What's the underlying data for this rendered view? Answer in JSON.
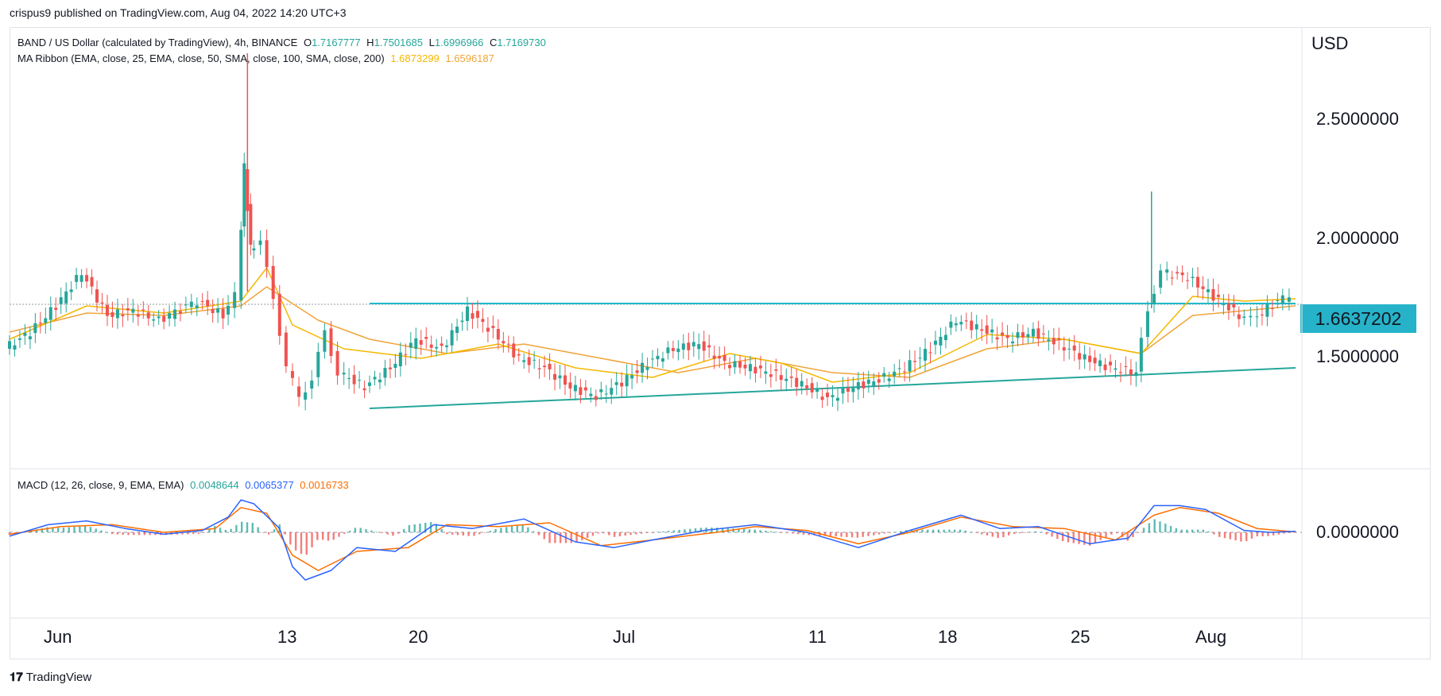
{
  "header": {
    "published": "crispus9 published on TradingView.com, Aug 04, 2022 14:20 UTC+3"
  },
  "legend": {
    "symbol": "BAND / US Dollar (calculated by TradingView), 4h, BINANCE",
    "o_label": "O",
    "o_value": "1.7167777",
    "h_label": "H",
    "h_value": "1.7501685",
    "l_label": "L",
    "l_value": "1.6996966",
    "c_label": "C",
    "c_value": "1.7169730",
    "ma_name": "MA Ribbon (EMA, close, 25, EMA, close, 50, SMA, close, 100, SMA, close, 200)",
    "ma_v1": "1.6873299",
    "ma_v2": "1.6596187",
    "macd_name": "MACD (12, 26, close, 9, EMA, EMA)",
    "macd_v1": "0.0048644",
    "macd_v2": "0.0065377",
    "macd_v3": "0.0016733"
  },
  "colors": {
    "up": "#26a69a",
    "down": "#ef5350",
    "ma1": "#f5b800",
    "ma2": "#f0a43a",
    "trend": "#26a69a",
    "resist": "#22b8c9",
    "macd": "#2962ff",
    "signal": "#ff6d00"
  },
  "footer": {
    "brand": "TradingView"
  },
  "chart_data": {
    "type": "line",
    "title": "BAND / US Dollar, 4h, BINANCE",
    "currency": "USD",
    "y_ticks": [
      "2.5000000",
      "2.0000000",
      "1.5000000"
    ],
    "last_price": "1.6637202",
    "x_ticks": [
      "Jun",
      "13",
      "20",
      "Jul",
      "11",
      "18",
      "25",
      "Aug"
    ],
    "price_path": [
      [
        0,
        1.48
      ],
      [
        2,
        1.55
      ],
      [
        4,
        1.66
      ],
      [
        6,
        1.8
      ],
      [
        8,
        1.62
      ],
      [
        10,
        1.64
      ],
      [
        12,
        1.6
      ],
      [
        15,
        1.68
      ],
      [
        17,
        1.62
      ],
      [
        18,
        1.7
      ],
      [
        18.5,
        2.25
      ],
      [
        19,
        1.9
      ],
      [
        20,
        1.92
      ],
      [
        21,
        1.7
      ],
      [
        22,
        1.4
      ],
      [
        23,
        1.28
      ],
      [
        24,
        1.35
      ],
      [
        25,
        1.55
      ],
      [
        26,
        1.38
      ],
      [
        28,
        1.32
      ],
      [
        30,
        1.4
      ],
      [
        32,
        1.52
      ],
      [
        34,
        1.48
      ],
      [
        36,
        1.64
      ],
      [
        38,
        1.55
      ],
      [
        40,
        1.44
      ],
      [
        42,
        1.4
      ],
      [
        44,
        1.32
      ],
      [
        46,
        1.28
      ],
      [
        48,
        1.34
      ],
      [
        50,
        1.42
      ],
      [
        52,
        1.48
      ],
      [
        54,
        1.5
      ],
      [
        56,
        1.42
      ],
      [
        58,
        1.4
      ],
      [
        60,
        1.37
      ],
      [
        62,
        1.33
      ],
      [
        64,
        1.27
      ],
      [
        66,
        1.32
      ],
      [
        68,
        1.35
      ],
      [
        70,
        1.4
      ],
      [
        72,
        1.48
      ],
      [
        74,
        1.6
      ],
      [
        76,
        1.56
      ],
      [
        78,
        1.52
      ],
      [
        80,
        1.55
      ],
      [
        82,
        1.5
      ],
      [
        84,
        1.44
      ],
      [
        86,
        1.4
      ],
      [
        88,
        1.38
      ],
      [
        89,
        1.65
      ],
      [
        90,
        1.8
      ],
      [
        92,
        1.78
      ],
      [
        94,
        1.7
      ],
      [
        96,
        1.62
      ],
      [
        97,
        1.6
      ],
      [
        99,
        1.68
      ],
      [
        100,
        1.71
      ]
    ],
    "ma_25": [
      [
        0,
        1.52
      ],
      [
        6,
        1.66
      ],
      [
        12,
        1.63
      ],
      [
        18,
        1.68
      ],
      [
        20,
        1.82
      ],
      [
        22,
        1.58
      ],
      [
        26,
        1.48
      ],
      [
        32,
        1.44
      ],
      [
        38,
        1.5
      ],
      [
        44,
        1.4
      ],
      [
        50,
        1.36
      ],
      [
        56,
        1.46
      ],
      [
        60,
        1.42
      ],
      [
        64,
        1.34
      ],
      [
        70,
        1.38
      ],
      [
        76,
        1.54
      ],
      [
        82,
        1.52
      ],
      [
        88,
        1.46
      ],
      [
        92,
        1.7
      ],
      [
        96,
        1.68
      ],
      [
        100,
        1.69
      ]
    ],
    "ma_50": [
      [
        0,
        1.55
      ],
      [
        6,
        1.63
      ],
      [
        12,
        1.62
      ],
      [
        18,
        1.66
      ],
      [
        20,
        1.74
      ],
      [
        24,
        1.6
      ],
      [
        28,
        1.52
      ],
      [
        34,
        1.46
      ],
      [
        40,
        1.5
      ],
      [
        46,
        1.44
      ],
      [
        52,
        1.38
      ],
      [
        58,
        1.44
      ],
      [
        64,
        1.38
      ],
      [
        70,
        1.36
      ],
      [
        76,
        1.48
      ],
      [
        82,
        1.52
      ],
      [
        88,
        1.46
      ],
      [
        92,
        1.62
      ],
      [
        96,
        1.64
      ],
      [
        100,
        1.66
      ]
    ],
    "resistance": {
      "x": [
        28,
        100
      ],
      "y": [
        1.67,
        1.67
      ]
    },
    "support": {
      "x": [
        28,
        100
      ],
      "y": [
        1.23,
        1.4
      ]
    },
    "macd": [
      [
        0,
        -0.02
      ],
      [
        3,
        0.04
      ],
      [
        6,
        0.06
      ],
      [
        9,
        0.02
      ],
      [
        12,
        -0.01
      ],
      [
        15,
        0.01
      ],
      [
        17,
        0.08
      ],
      [
        18,
        0.17
      ],
      [
        19,
        0.15
      ],
      [
        21,
        0.02
      ],
      [
        22,
        -0.18
      ],
      [
        23,
        -0.25
      ],
      [
        25,
        -0.2
      ],
      [
        27,
        -0.08
      ],
      [
        30,
        -0.1
      ],
      [
        33,
        0.04
      ],
      [
        36,
        0.02
      ],
      [
        40,
        0.07
      ],
      [
        44,
        -0.05
      ],
      [
        47,
        -0.08
      ],
      [
        50,
        -0.04
      ],
      [
        54,
        0.01
      ],
      [
        58,
        0.04
      ],
      [
        62,
        0.0
      ],
      [
        66,
        -0.08
      ],
      [
        70,
        0.01
      ],
      [
        74,
        0.09
      ],
      [
        77,
        0.02
      ],
      [
        80,
        0.03
      ],
      [
        84,
        -0.06
      ],
      [
        87,
        -0.03
      ],
      [
        89,
        0.14
      ],
      [
        91,
        0.14
      ],
      [
        93,
        0.12
      ],
      [
        96,
        0.01
      ],
      [
        98,
        0.0
      ],
      [
        100,
        0.005
      ]
    ],
    "signal": [
      [
        0,
        -0.01
      ],
      [
        4,
        0.03
      ],
      [
        8,
        0.04
      ],
      [
        12,
        0.0
      ],
      [
        16,
        0.02
      ],
      [
        18,
        0.13
      ],
      [
        20,
        0.1
      ],
      [
        22,
        -0.12
      ],
      [
        24,
        -0.2
      ],
      [
        27,
        -0.1
      ],
      [
        31,
        -0.08
      ],
      [
        34,
        0.04
      ],
      [
        38,
        0.03
      ],
      [
        42,
        0.05
      ],
      [
        46,
        -0.07
      ],
      [
        50,
        -0.04
      ],
      [
        55,
        0.0
      ],
      [
        58,
        0.03
      ],
      [
        62,
        0.01
      ],
      [
        66,
        -0.06
      ],
      [
        70,
        0.0
      ],
      [
        74,
        0.08
      ],
      [
        78,
        0.03
      ],
      [
        82,
        0.02
      ],
      [
        86,
        -0.04
      ],
      [
        89,
        0.09
      ],
      [
        91,
        0.13
      ],
      [
        94,
        0.1
      ],
      [
        97,
        0.02
      ],
      [
        100,
        0.002
      ]
    ]
  }
}
